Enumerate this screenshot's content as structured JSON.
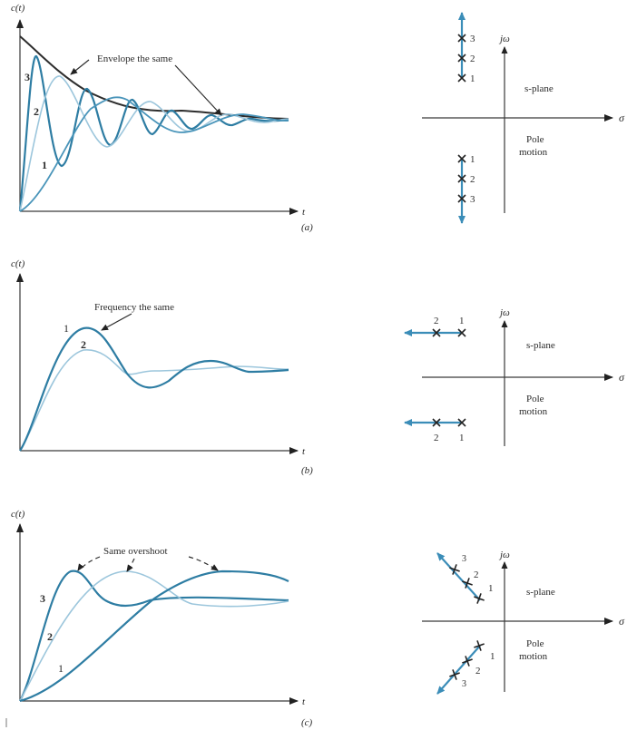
{
  "figure": {
    "panels": [
      {
        "id": "a",
        "caption": "(a)",
        "time_plot": {
          "y_label": "c(t)",
          "x_label": "t",
          "annotation": "Envelope the same",
          "curve_labels": [
            "3",
            "2",
            "1"
          ]
        },
        "s_plane": {
          "imag_axis_label": "jω",
          "real_axis_label": "σ",
          "plane_label": "s-plane",
          "motion_label_line1": "Pole",
          "motion_label_line2": "motion",
          "upper_pole_labels": [
            "3",
            "2",
            "1"
          ],
          "lower_pole_labels": [
            "1",
            "2",
            "3"
          ],
          "motion_direction": "vertical (imaginary part increasing, real part fixed)"
        }
      },
      {
        "id": "b",
        "caption": "(b)",
        "time_plot": {
          "y_label": "c(t)",
          "x_label": "t",
          "annotation": "Frequency the same",
          "curve_labels": [
            "1",
            "2"
          ]
        },
        "s_plane": {
          "imag_axis_label": "jω",
          "real_axis_label": "σ",
          "plane_label": "s-plane",
          "motion_label_line1": "Pole",
          "motion_label_line2": "motion",
          "upper_pole_labels": [
            "2",
            "1"
          ],
          "lower_pole_labels": [
            "2",
            "1"
          ],
          "motion_direction": "horizontal (real part more negative, imaginary part fixed)"
        }
      },
      {
        "id": "c",
        "caption": "(c)",
        "time_plot": {
          "y_label": "c(t)",
          "x_label": "t",
          "annotation": "Same overshoot",
          "curve_labels": [
            "3",
            "2",
            "1"
          ]
        },
        "s_plane": {
          "imag_axis_label": "jω",
          "real_axis_label": "σ",
          "plane_label": "s-plane",
          "motion_label_line1": "Pole",
          "motion_label_line2": "motion",
          "upper_pole_labels": [
            "3",
            "2",
            "1"
          ],
          "lower_pole_labels": [
            "1",
            "2",
            "3"
          ],
          "motion_direction": "radial (constant damping ratio line)"
        }
      }
    ]
  },
  "colors": {
    "curve_dark": "#2e7da3",
    "curve_light": "#9cc6dc",
    "pole_path": "#3b8db8",
    "axes": "#3a3a3a"
  }
}
